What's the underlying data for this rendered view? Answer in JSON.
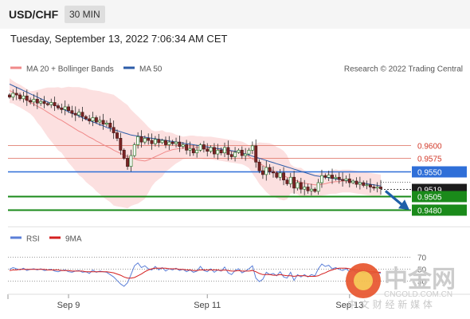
{
  "header": {
    "symbol": "USD/CHF",
    "timeframe": "30 MIN"
  },
  "datetime": "Tuesday, September 13, 2022 7:06:34 AM CET",
  "legend": {
    "items": [
      {
        "label": "MA 20 + Bollinger Bands",
        "color": "#f08a8a"
      },
      {
        "label": "MA 50",
        "color": "#2c5ca8"
      }
    ],
    "credit": "Research © 2022 Trading Central"
  },
  "rsi_legend": {
    "items": [
      {
        "label": "RSI",
        "color": "#5b7fd8"
      },
      {
        "label": "9MA",
        "color": "#d42020"
      }
    ]
  },
  "watermark": {
    "big": "中金网",
    "url": "CNGOLD.COM.CN",
    "sub": "中 文 财 经 新 媒 体"
  },
  "chart_data": [
    {
      "type": "candlestick",
      "ylim": [
        0.9455,
        0.972
      ],
      "levels": [
        {
          "label": "0.9600",
          "value": 0.96,
          "kind": "resistance",
          "color": "#e07a6c"
        },
        {
          "label": "0.9575",
          "value": 0.9575,
          "kind": "resistance",
          "color": "#e07a6c"
        },
        {
          "label": "0.9550",
          "value": 0.955,
          "kind": "pivot",
          "color": "#2f6fd8"
        },
        {
          "label": "0.9519",
          "value": 0.9519,
          "kind": "last",
          "color": "#222222"
        },
        {
          "label": "0.9505",
          "value": 0.9505,
          "kind": "support",
          "color": "#1a8a1a"
        },
        {
          "label": "0.9480",
          "value": 0.948,
          "kind": "support",
          "color": "#1a8a1a"
        }
      ],
      "close_series": [
        0.9688,
        0.9695,
        0.9692,
        0.9685,
        0.969,
        0.9682,
        0.9679,
        0.9684,
        0.9677,
        0.968,
        0.9676,
        0.9674,
        0.9678,
        0.9672,
        0.9668,
        0.9665,
        0.967,
        0.9663,
        0.9658,
        0.9655,
        0.966,
        0.9652,
        0.9648,
        0.9644,
        0.965,
        0.9642,
        0.9645,
        0.9638,
        0.964,
        0.9632,
        0.9622,
        0.9612,
        0.959,
        0.9575,
        0.956,
        0.958,
        0.96,
        0.9615,
        0.9605,
        0.9612,
        0.9608,
        0.9602,
        0.961,
        0.9604,
        0.9608,
        0.96,
        0.9605,
        0.9602,
        0.9605,
        0.9597,
        0.96,
        0.959,
        0.9593,
        0.9585,
        0.959,
        0.96,
        0.9592,
        0.9588,
        0.9595,
        0.9583,
        0.959,
        0.9585,
        0.9595,
        0.9582,
        0.9578,
        0.9586,
        0.959,
        0.958,
        0.9583,
        0.959,
        0.9598,
        0.9568,
        0.9552,
        0.9545,
        0.9558,
        0.955,
        0.9548,
        0.954,
        0.9548,
        0.9535,
        0.9528,
        0.954,
        0.952,
        0.953,
        0.9518,
        0.9522,
        0.9515,
        0.9518,
        0.9514,
        0.953,
        0.9543,
        0.954,
        0.9544,
        0.9538,
        0.954,
        0.9536,
        0.9534,
        0.9537,
        0.953,
        0.9533,
        0.9527,
        0.953,
        0.9525,
        0.9526,
        0.9522,
        0.952,
        0.9522,
        0.9519
      ],
      "ma20": [
        0.97,
        0.9697,
        0.9693,
        0.969,
        0.9686,
        0.9682,
        0.9678,
        0.9675,
        0.9671,
        0.9668,
        0.9664,
        0.966,
        0.9656,
        0.9652,
        0.9648,
        0.9645,
        0.9641,
        0.9637,
        0.9633,
        0.9629,
        0.9625,
        0.9622,
        0.9618,
        0.9614,
        0.9611,
        0.9607,
        0.9604,
        0.96,
        0.9597,
        0.9594,
        0.959,
        0.9587,
        0.9584,
        0.9581,
        0.9578,
        0.9576,
        0.9574,
        0.9572,
        0.9571,
        0.957,
        0.9572,
        0.9575,
        0.9578,
        0.9581,
        0.9584,
        0.9587,
        0.9589,
        0.9591,
        0.9592,
        0.9593,
        0.9594,
        0.9595,
        0.9596,
        0.9596,
        0.9595,
        0.9595,
        0.9594,
        0.9594,
        0.9594,
        0.9593,
        0.9592,
        0.9591,
        0.959,
        0.9589,
        0.9588,
        0.9587,
        0.9586,
        0.9585,
        0.9582,
        0.9578,
        0.9574,
        0.957,
        0.9566,
        0.9562,
        0.9558,
        0.9555,
        0.9552,
        0.9549,
        0.9546,
        0.9543,
        0.954,
        0.9537,
        0.9535,
        0.9533,
        0.9531,
        0.9529,
        0.9528,
        0.9527,
        0.9526,
        0.9526,
        0.9527,
        0.9528,
        0.953,
        0.9531,
        0.9532,
        0.9532,
        0.9533,
        0.9533,
        0.9533,
        0.9532,
        0.9531,
        0.953,
        0.9529,
        0.9528,
        0.9527,
        0.9526,
        0.9525,
        0.9524
      ],
      "ma50": [
        0.9712,
        0.9709,
        0.9706,
        0.9703,
        0.97,
        0.9697,
        0.9694,
        0.9691,
        0.9688,
        0.9685,
        0.9682,
        0.9679,
        0.9676,
        0.9673,
        0.967,
        0.9667,
        0.9664,
        0.9661,
        0.9658,
        0.9656,
        0.9653,
        0.965,
        0.9647,
        0.9645,
        0.9642,
        0.964,
        0.9637,
        0.9635,
        0.9632,
        0.963,
        0.9628,
        0.9626,
        0.9624,
        0.9622,
        0.962,
        0.9618,
        0.9617,
        0.9616,
        0.9615,
        0.9614,
        0.9613,
        0.9612,
        0.9611,
        0.961,
        0.9609,
        0.9608,
        0.9607,
        0.9606,
        0.9605,
        0.9604,
        0.9603,
        0.9602,
        0.9601,
        0.96,
        0.9599,
        0.9598,
        0.9597,
        0.9596,
        0.9595,
        0.9594,
        0.9593,
        0.9592,
        0.9591,
        0.959,
        0.9589,
        0.9588,
        0.9587,
        0.9585,
        0.9583,
        0.9581,
        0.9579,
        0.9577,
        0.9575,
        0.9573,
        0.9571,
        0.9569,
        0.9567,
        0.9565,
        0.9563,
        0.9561,
        0.9559,
        0.9557,
        0.9555,
        0.9553,
        0.9551,
        0.9549,
        0.9547,
        0.9545,
        0.9543,
        0.9542,
        0.9541,
        0.954,
        0.9539,
        0.9538,
        0.9537,
        0.9536,
        0.9535,
        0.9534,
        0.9533,
        0.9532,
        0.9531,
        0.953,
        0.9529,
        0.9528,
        0.9527,
        0.9526,
        0.9525,
        0.9524
      ],
      "projection": {
        "from": 0.9519,
        "to": 0.9487
      }
    },
    {
      "type": "line",
      "ylim": [
        5,
        80
      ],
      "levels": [
        {
          "label": "70",
          "value": 70
        },
        {
          "label": "50",
          "value": 50
        },
        {
          "label": "30",
          "value": 30
        }
      ],
      "series": [
        {
          "name": "RSI",
          "values": [
            49,
            52,
            50,
            48,
            51,
            47,
            49,
            50,
            48,
            50,
            47,
            48,
            49,
            46,
            45,
            47,
            48,
            45,
            44,
            46,
            47,
            44,
            45,
            42,
            48,
            44,
            46,
            45,
            44,
            40,
            36,
            30,
            24,
            20,
            26,
            40,
            55,
            60,
            52,
            55,
            50,
            48,
            54,
            48,
            52,
            46,
            50,
            48,
            51,
            47,
            49,
            45,
            48,
            44,
            46,
            54,
            47,
            45,
            50,
            44,
            48,
            46,
            53,
            43,
            40,
            47,
            50,
            43,
            46,
            50,
            55,
            34,
            28,
            32,
            44,
            40,
            42,
            38,
            45,
            36,
            34,
            44,
            30,
            40,
            36,
            40,
            36,
            40,
            38,
            50,
            58,
            54,
            56,
            50,
            52,
            49,
            47,
            50,
            45,
            48,
            44,
            46,
            43,
            45,
            42,
            43,
            44,
            42
          ]
        },
        {
          "name": "9MA",
          "values": [
            47,
            48,
            48,
            49,
            49,
            49,
            49,
            49,
            49,
            49,
            49,
            48,
            48,
            48,
            48,
            47,
            47,
            47,
            46,
            46,
            46,
            46,
            45,
            45,
            45,
            45,
            45,
            45,
            45,
            44,
            43,
            41,
            39,
            36,
            34,
            34,
            35,
            38,
            41,
            45,
            48,
            50,
            51,
            51,
            51,
            51,
            50,
            50,
            50,
            49,
            49,
            48,
            48,
            47,
            47,
            48,
            48,
            48,
            48,
            48,
            48,
            47,
            48,
            47,
            46,
            46,
            47,
            46,
            46,
            46,
            47,
            45,
            42,
            40,
            40,
            40,
            39,
            39,
            40,
            39,
            38,
            38,
            37,
            38,
            38,
            38,
            37,
            37,
            37,
            38,
            41,
            43,
            46,
            48,
            50,
            51,
            51,
            51,
            50,
            49,
            48,
            47,
            46,
            46,
            45,
            45,
            44,
            44
          ]
        }
      ],
      "x_ticks": [
        {
          "label": "Sep 9",
          "index": 17
        },
        {
          "label": "Sep 11",
          "index": 57
        },
        {
          "label": "Sep 13",
          "index": 98
        }
      ]
    }
  ]
}
